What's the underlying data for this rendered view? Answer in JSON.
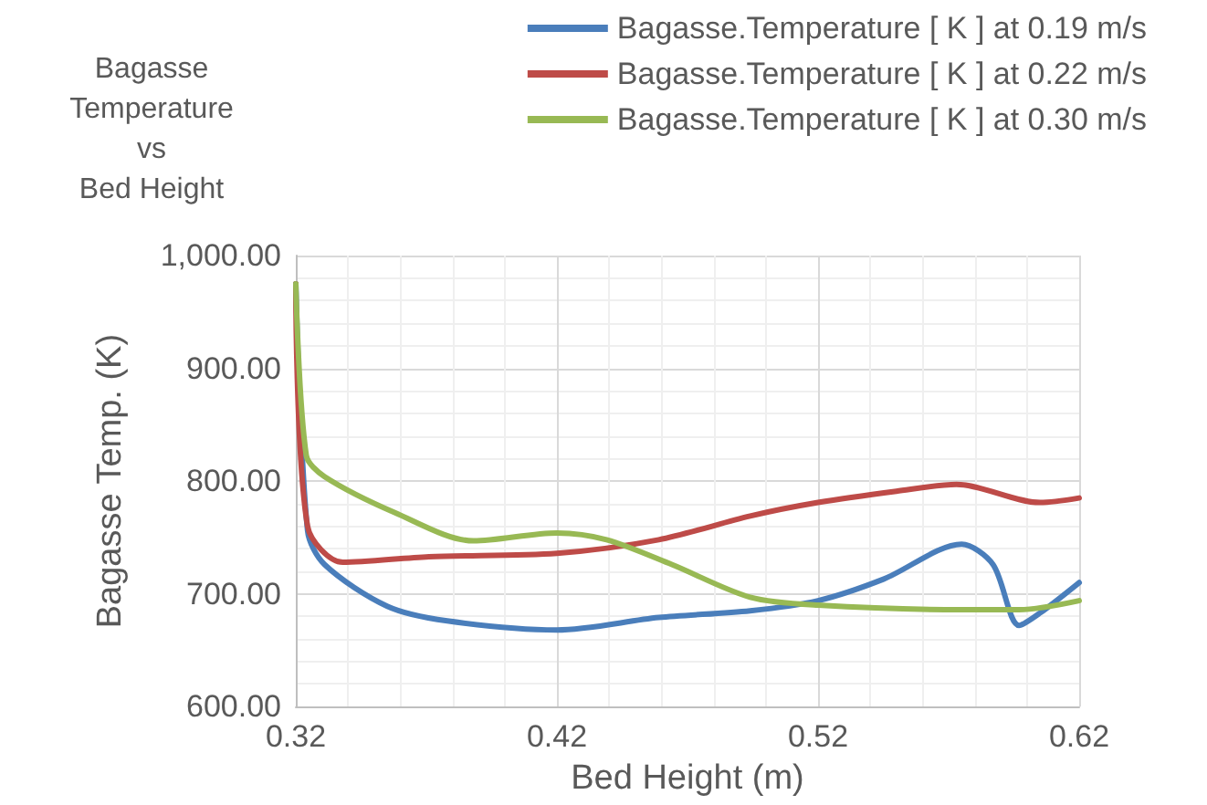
{
  "chart_data": {
    "type": "line",
    "title": "Bagasse Temperature vs Bed Height",
    "xlabel": "Bed Height (m)",
    "ylabel": "Bagasse Temp. (K)",
    "xlim": [
      0.32,
      0.62
    ],
    "xticks": [
      0.32,
      0.42,
      0.52,
      0.62
    ],
    "ylim": [
      600,
      1000
    ],
    "yticks": [
      {
        "value": 600,
        "label": "600.00"
      },
      {
        "value": 700,
        "label": "700.00"
      },
      {
        "value": 800,
        "label": "800.00"
      },
      {
        "value": 900,
        "label": "900.00"
      },
      {
        "value": 1000,
        "label": "1,000.00"
      }
    ],
    "grid": true,
    "legend": "top right",
    "marker": "none",
    "line_style": "solid",
    "series": [
      {
        "name": "Bagasse.Temperature [ K ] at 0.19 m/s",
        "color": "#4a7ebb",
        "x": [
          0.32,
          0.3245,
          0.331,
          0.355,
          0.378,
          0.42,
          0.459,
          0.494,
          0.52,
          0.545,
          0.575,
          0.587,
          0.597,
          0.605,
          0.62
        ],
        "values": [
          975,
          756,
          726,
          689,
          676,
          668,
          679,
          685,
          694,
          713,
          744,
          726,
          672,
          683,
          710
        ]
      },
      {
        "name": "Bagasse.Temperature [ K ] at 0.22 m/s",
        "color": "#be4b48",
        "x": [
          0.32,
          0.3245,
          0.338,
          0.371,
          0.42,
          0.459,
          0.494,
          0.52,
          0.55,
          0.573,
          0.605,
          0.62
        ],
        "values": [
          975,
          760,
          728,
          733,
          736,
          748,
          769,
          781,
          791,
          797,
          781,
          785
        ]
      },
      {
        "name": "Bagasse.Temperature [ K ] at 0.30 m/s",
        "color": "#98b954",
        "x": [
          0.32,
          0.324,
          0.331,
          0.358,
          0.388,
          0.42,
          0.439,
          0.464,
          0.494,
          0.52,
          0.575,
          0.597,
          0.62
        ],
        "values": [
          975,
          823,
          804,
          772,
          747,
          754,
          748,
          726,
          697,
          690,
          686,
          686,
          694
        ]
      }
    ]
  }
}
